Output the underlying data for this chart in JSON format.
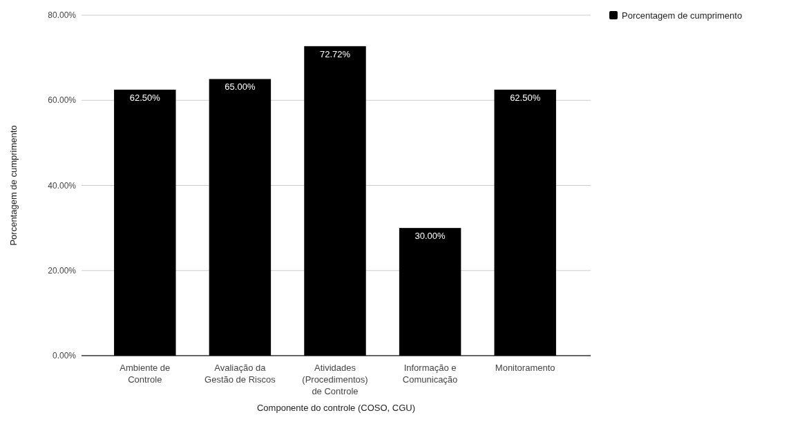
{
  "chart_data": {
    "type": "bar",
    "xlabel": "Componente do controle (COSO, CGU)",
    "ylabel": "Porcentagem de cumprimento",
    "categories": [
      "Ambiente de Controle",
      "Avaliação da Gestão de Riscos",
      "Atividades (Procedimentos) de Controle",
      "Informação e Comunicação",
      "Monitoramento"
    ],
    "series": [
      {
        "name": "Porcentagem de cumprimento",
        "color": "#000000",
        "values": [
          62.5,
          65,
          72.72,
          30,
          62.5
        ],
        "value_labels": [
          "62.50%",
          "65.00%",
          "72.72%",
          "30.00%",
          "62.50%"
        ]
      }
    ],
    "ylim": [
      0,
      80
    ],
    "yticks": [
      {
        "value": 0,
        "label": "0.00%"
      },
      {
        "value": 20,
        "label": "20.00%"
      },
      {
        "value": 40,
        "label": "40.00%"
      },
      {
        "value": 60,
        "label": "60.00%"
      },
      {
        "value": 80,
        "label": "80.00%"
      }
    ],
    "grid": "y",
    "legend": "top right"
  }
}
